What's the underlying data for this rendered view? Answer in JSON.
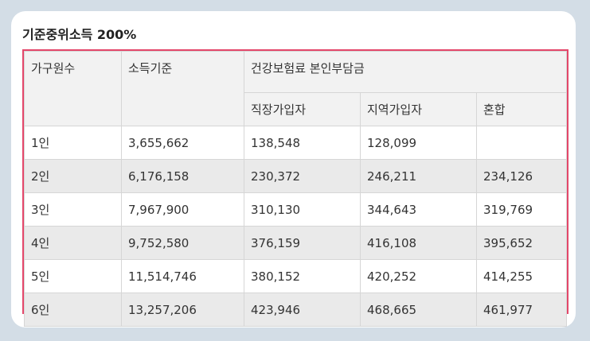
{
  "title": "기준중위소득 200%",
  "headers": {
    "household": "가구원수",
    "income": "소득기준",
    "premium": "건강보험료 본인부담금",
    "employee": "직장가입자",
    "regional": "지역가입자",
    "mixed": "혼합"
  },
  "rows": [
    {
      "household": "1인",
      "income": "3,655,662",
      "employee": "138,548",
      "regional": "128,099",
      "mixed": ""
    },
    {
      "household": "2인",
      "income": "6,176,158",
      "employee": "230,372",
      "regional": "246,211",
      "mixed": "234,126"
    },
    {
      "household": "3인",
      "income": "7,967,900",
      "employee": "310,130",
      "regional": "344,643",
      "mixed": "319,769"
    },
    {
      "household": "4인",
      "income": "9,752,580",
      "employee": "376,159",
      "regional": "416,108",
      "mixed": "395,652"
    },
    {
      "household": "5인",
      "income": "11,514,746",
      "employee": "380,152",
      "regional": "420,252",
      "mixed": "414,255"
    },
    {
      "household": "6인",
      "income": "13,257,206",
      "employee": "423,946",
      "regional": "468,665",
      "mixed": "461,977"
    }
  ]
}
